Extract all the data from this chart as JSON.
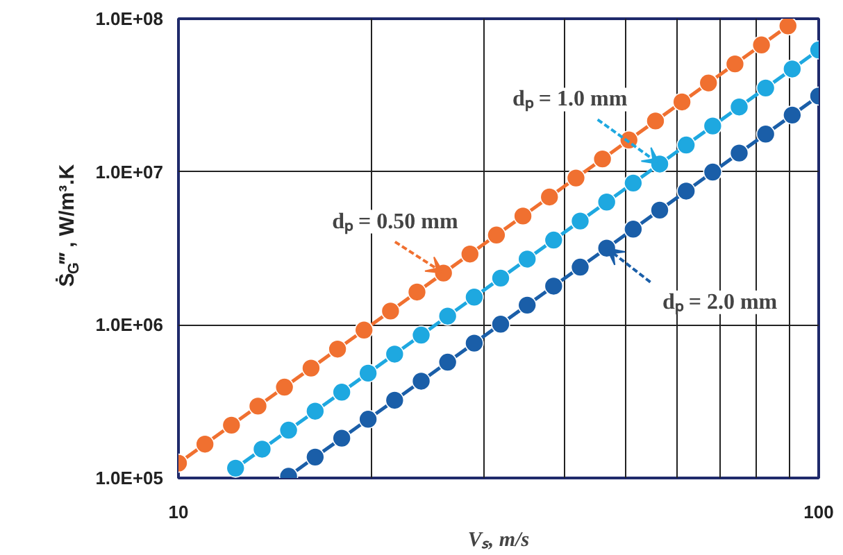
{
  "chart_data": {
    "type": "line",
    "xlabel": "Vₛ, m/s",
    "ylabel": "Ṡ$_{G}$‴ , W/m³.K",
    "log": "xy",
    "grid": true,
    "marker": "circle",
    "line_style": "solid",
    "xlim": [
      10,
      100
    ],
    "ylim": [
      100000,
      100000000
    ],
    "xticks": [
      10,
      {
        "value": 20,
        "label": null
      },
      {
        "value": 30,
        "label": null
      },
      {
        "value": 40,
        "label": null
      },
      {
        "value": 50,
        "label": null
      },
      {
        "value": 60,
        "label": null
      },
      {
        "value": 70,
        "label": null
      },
      {
        "value": 80,
        "label": null
      },
      {
        "value": 90,
        "label": null
      },
      100
    ],
    "yticks": [
      {
        "value": 100000,
        "label": "1.0E+05"
      },
      {
        "value": 1000000,
        "label": "1.0E+06"
      },
      {
        "value": 10000000,
        "label": "1.0E+07"
      },
      {
        "value": 100000000,
        "label": "1.0E+08"
      }
    ],
    "series": [
      {
        "color": "#f07030",
        "x": [
          10,
          11,
          12.1,
          13.31,
          14.64,
          16.11,
          17.72,
          19.49,
          21.44,
          23.58,
          25.94,
          28.53,
          31.38,
          34.52,
          37.97,
          41.77,
          45.95,
          50.54,
          55.6,
          61.16,
          67.27,
          74.0,
          81.4,
          89.54
        ],
        "values": [
          125000,
          166400,
          221400,
          294700,
          392300,
          522100,
          694900,
          924900,
          1231000,
          1639000,
          2181000,
          2903000,
          3864000,
          5143000,
          6845000,
          9111000,
          12130000,
          16140000,
          21480000,
          28590000,
          38060000,
          50660000,
          67420000,
          89740000
        ]
      },
      {
        "color": "#1ea8e0",
        "x": [
          12.28,
          13.51,
          14.86,
          16.35,
          17.99,
          19.78,
          21.76,
          23.94,
          26.33,
          28.97,
          31.86,
          35.05,
          38.55,
          42.41,
          46.65,
          51.32,
          56.45,
          62.09,
          68.3,
          75.13,
          82.64,
          90.91,
          100
        ],
        "values": [
          115900,
          154200,
          205300,
          273200,
          363700,
          484000,
          644300,
          857500,
          1141000,
          1519000,
          2022000,
          2691000,
          3582000,
          4768000,
          6346000,
          8447000,
          11240000,
          14960000,
          19920000,
          26510000,
          35280000,
          46960000,
          62500000
        ]
      },
      {
        "color": "#1a5ea8",
        "x": [
          14.86,
          16.35,
          17.99,
          19.78,
          21.76,
          23.94,
          26.33,
          28.97,
          31.86,
          35.05,
          38.55,
          42.41,
          46.65,
          51.32,
          56.45,
          62.09,
          68.3,
          75.13,
          82.64,
          90.91,
          100
        ],
        "values": [
          102600,
          137000,
          182000,
          242000,
          322000,
          429000,
          571000,
          760000,
          1011000,
          1346000,
          1791000,
          2384000,
          3173000,
          4224000,
          5620000,
          7480000,
          9960000,
          13260000,
          17640000,
          23480000,
          31250000
        ]
      }
    ],
    "annotations": [
      {
        "text": "dₚ = 0.50 mm",
        "x": 25.94,
        "y": 2181000
      },
      {
        "text": "dₚ = 1.0 mm",
        "x": 56.45,
        "y": 11240000
      },
      {
        "text": "dₚ = 2.0 mm",
        "x": 46.65,
        "y": 3173000
      }
    ]
  }
}
